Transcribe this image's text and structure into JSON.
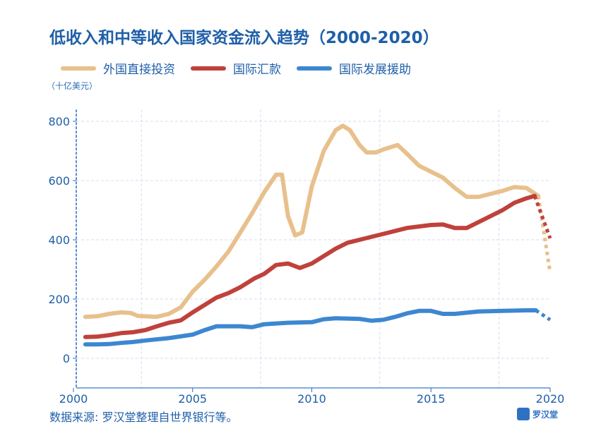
{
  "chart_data": {
    "type": "line",
    "title": "低收入和中等收入国家资金流入趋势（2000-2020）",
    "ylabel": "（十亿美元）",
    "xlabel": "",
    "xlim": [
      2000,
      2020
    ],
    "ylim": [
      -100,
      900
    ],
    "xticks": [
      2000,
      2005,
      2010,
      2015,
      2020
    ],
    "yticks": [
      0,
      200,
      400,
      600,
      800
    ],
    "grid": true,
    "legend_position": "top",
    "series": [
      {
        "name": "外国直接投资",
        "color": "#e8c08c",
        "projection_color": "#e8c08c",
        "points": [
          [
            2000.5,
            140
          ],
          [
            2001,
            142
          ],
          [
            2001.5,
            150
          ],
          [
            2002,
            155
          ],
          [
            2002.4,
            153
          ],
          [
            2002.7,
            143
          ],
          [
            2003.5,
            140
          ],
          [
            2004,
            150
          ],
          [
            2004.5,
            172
          ],
          [
            2005,
            225
          ],
          [
            2005.5,
            265
          ],
          [
            2006,
            310
          ],
          [
            2006.5,
            360
          ],
          [
            2007,
            425
          ],
          [
            2007.5,
            490
          ],
          [
            2008,
            560
          ],
          [
            2008.5,
            620
          ],
          [
            2008.75,
            620
          ],
          [
            2009,
            480
          ],
          [
            2009.3,
            415
          ],
          [
            2009.6,
            425
          ],
          [
            2010,
            580
          ],
          [
            2010.5,
            700
          ],
          [
            2011,
            770
          ],
          [
            2011.3,
            785
          ],
          [
            2011.6,
            770
          ],
          [
            2012,
            720
          ],
          [
            2012.3,
            695
          ],
          [
            2012.7,
            695
          ],
          [
            2013,
            705
          ],
          [
            2013.6,
            720
          ],
          [
            2014,
            690
          ],
          [
            2014.5,
            650
          ],
          [
            2015,
            630
          ],
          [
            2015.5,
            610
          ],
          [
            2016,
            575
          ],
          [
            2016.5,
            545
          ],
          [
            2017,
            545
          ],
          [
            2017.5,
            555
          ],
          [
            2018,
            565
          ],
          [
            2018.5,
            578
          ],
          [
            2019,
            575
          ],
          [
            2019.5,
            548
          ]
        ],
        "projection": [
          [
            2019.5,
            548
          ],
          [
            2020,
            290
          ]
        ]
      },
      {
        "name": "国际汇款",
        "color": "#c0413b",
        "projection_color": "#c0413b",
        "points": [
          [
            2000.5,
            72
          ],
          [
            2001,
            73
          ],
          [
            2001.5,
            78
          ],
          [
            2002,
            85
          ],
          [
            2002.5,
            88
          ],
          [
            2003,
            95
          ],
          [
            2003.5,
            108
          ],
          [
            2004,
            120
          ],
          [
            2004.5,
            128
          ],
          [
            2005,
            155
          ],
          [
            2005.5,
            180
          ],
          [
            2006,
            205
          ],
          [
            2006.5,
            220
          ],
          [
            2007,
            240
          ],
          [
            2007.6,
            270
          ],
          [
            2008,
            285
          ],
          [
            2008.5,
            315
          ],
          [
            2009,
            320
          ],
          [
            2009.5,
            305
          ],
          [
            2010,
            320
          ],
          [
            2010.5,
            345
          ],
          [
            2011,
            370
          ],
          [
            2011.5,
            390
          ],
          [
            2012,
            400
          ],
          [
            2013,
            420
          ],
          [
            2014,
            440
          ],
          [
            2015,
            450
          ],
          [
            2015.5,
            452
          ],
          [
            2016,
            440
          ],
          [
            2016.5,
            440
          ],
          [
            2017,
            460
          ],
          [
            2017.5,
            480
          ],
          [
            2018,
            500
          ],
          [
            2018.5,
            525
          ],
          [
            2019,
            540
          ],
          [
            2019.35,
            548
          ]
        ],
        "projection": [
          [
            2019.35,
            548
          ],
          [
            2020,
            405
          ]
        ]
      },
      {
        "name": "国际发展援助",
        "color": "#3d87d1",
        "projection_color": "#3d87d1",
        "points": [
          [
            2000.5,
            47
          ],
          [
            2001,
            47
          ],
          [
            2001.5,
            48
          ],
          [
            2002,
            52
          ],
          [
            2002.5,
            55
          ],
          [
            2003,
            60
          ],
          [
            2004,
            68
          ],
          [
            2005,
            80
          ],
          [
            2005.5,
            95
          ],
          [
            2006,
            108
          ],
          [
            2007,
            108
          ],
          [
            2007.5,
            105
          ],
          [
            2008,
            115
          ],
          [
            2009,
            120
          ],
          [
            2010,
            122
          ],
          [
            2010.5,
            132
          ],
          [
            2011,
            135
          ],
          [
            2012,
            133
          ],
          [
            2012.5,
            127
          ],
          [
            2013,
            130
          ],
          [
            2013.5,
            140
          ],
          [
            2014,
            152
          ],
          [
            2014.5,
            160
          ],
          [
            2015,
            160
          ],
          [
            2015.5,
            150
          ],
          [
            2016,
            150
          ],
          [
            2017,
            158
          ],
          [
            2018,
            160
          ],
          [
            2019,
            162
          ],
          [
            2019.4,
            162
          ]
        ],
        "projection": [
          [
            2019.4,
            162
          ],
          [
            2020,
            130
          ]
        ]
      }
    ]
  },
  "source": "数据来源: 罗汉堂整理自世界银行等。",
  "logo_text": "罗汉堂"
}
